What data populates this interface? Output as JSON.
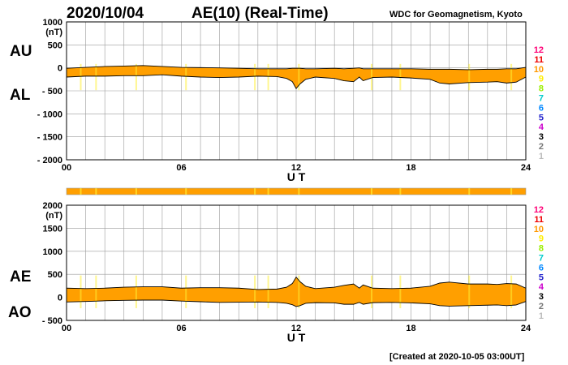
{
  "header": {
    "date": "2020/10/04",
    "title": "AE(10) (Real-Time)",
    "source": "WDC for Geomagnetism, Kyoto",
    "footer": "[Created at 2020-10-05 03:00UT]"
  },
  "colors": {
    "fill": "#ff9f00",
    "highlight": "#ffee33",
    "grid": "#9a9a9a",
    "line": "#000000"
  },
  "legend": {
    "entries": [
      {
        "label": "12",
        "color": "#ff0077"
      },
      {
        "label": "11",
        "color": "#ee0000"
      },
      {
        "label": "10",
        "color": "#ff9900"
      },
      {
        "label": "9",
        "color": "#ffee00"
      },
      {
        "label": "8",
        "color": "#99ee00"
      },
      {
        "label": "7",
        "color": "#00cccc"
      },
      {
        "label": "6",
        "color": "#0088ff"
      },
      {
        "label": "5",
        "color": "#2222cc"
      },
      {
        "label": "4",
        "color": "#cc00cc"
      },
      {
        "label": "3",
        "color": "#000000"
      },
      {
        "label": "2",
        "color": "#777777"
      },
      {
        "label": "1",
        "color": "#bbbbbb"
      }
    ]
  },
  "chart_data": [
    {
      "type": "area",
      "upper_series_name": "AU",
      "lower_series_name": "AL",
      "unit": "(nT)",
      "xlabel": "U T",
      "xlim": [
        0,
        24
      ],
      "ylim": [
        -2000,
        1000
      ],
      "x_ticks": [
        {
          "v": 0,
          "label": "00"
        },
        {
          "v": 6,
          "label": "06"
        },
        {
          "v": 12,
          "label": "12"
        },
        {
          "v": 18,
          "label": "18"
        },
        {
          "v": 24,
          "label": "24"
        }
      ],
      "y_ticks": [
        {
          "v": 1000,
          "label": "1000"
        },
        {
          "v": 500,
          "label": "500"
        },
        {
          "v": 0,
          "label": "0"
        },
        {
          "v": -500,
          "label": "- 500"
        },
        {
          "v": -1000,
          "label": "- 1000"
        },
        {
          "v": -1500,
          "label": "- 1500"
        },
        {
          "v": -2000,
          "label": "- 2000"
        }
      ],
      "grid": true,
      "x": [
        0,
        1,
        2,
        3,
        4,
        5,
        6,
        7,
        8,
        9,
        10,
        11,
        11.5,
        11.8,
        12,
        12.2,
        12.5,
        13,
        14,
        14.5,
        15,
        15.3,
        15.5,
        16,
        17,
        18,
        19,
        19.5,
        20,
        21,
        22,
        22.5,
        23,
        23.5,
        24
      ],
      "upper": [
        -10,
        10,
        30,
        40,
        50,
        30,
        10,
        5,
        0,
        -10,
        -20,
        -20,
        -20,
        -10,
        -10,
        -10,
        -20,
        -20,
        -10,
        -20,
        -10,
        0,
        -20,
        -20,
        -20,
        -20,
        -30,
        -30,
        -30,
        -40,
        -30,
        -30,
        -20,
        -20,
        10
      ],
      "lower": [
        -200,
        -180,
        -180,
        -170,
        -170,
        -150,
        -180,
        -200,
        -210,
        -200,
        -180,
        -190,
        -230,
        -300,
        -450,
        -350,
        -250,
        -200,
        -230,
        -280,
        -300,
        -200,
        -280,
        -210,
        -200,
        -220,
        -250,
        -330,
        -350,
        -320,
        -310,
        -300,
        -330,
        -310,
        -200
      ]
    },
    {
      "type": "area",
      "upper_series_name": "AE",
      "lower_series_name": "AO",
      "unit": "(nT)",
      "xlabel": "U T",
      "xlim": [
        0,
        24
      ],
      "ylim": [
        -500,
        2000
      ],
      "x_ticks": [
        {
          "v": 0,
          "label": "00"
        },
        {
          "v": 6,
          "label": "06"
        },
        {
          "v": 12,
          "label": "12"
        },
        {
          "v": 18,
          "label": "18"
        },
        {
          "v": 24,
          "label": "24"
        }
      ],
      "y_ticks": [
        {
          "v": 2000,
          "label": "2000"
        },
        {
          "v": 1500,
          "label": "1500"
        },
        {
          "v": 1000,
          "label": "1000"
        },
        {
          "v": 500,
          "label": "500"
        },
        {
          "v": 0,
          "label": "0"
        },
        {
          "v": -500,
          "label": "- 500"
        }
      ],
      "grid": true,
      "x": [
        0,
        1,
        2,
        3,
        4,
        5,
        6,
        7,
        8,
        9,
        10,
        11,
        11.5,
        11.8,
        12,
        12.2,
        12.5,
        13,
        14,
        14.5,
        15,
        15.3,
        15.5,
        16,
        17,
        18,
        19,
        19.5,
        20,
        21,
        22,
        22.5,
        23,
        23.5,
        24
      ],
      "upper": [
        200,
        190,
        200,
        220,
        230,
        230,
        200,
        210,
        210,
        200,
        170,
        180,
        220,
        300,
        440,
        340,
        240,
        190,
        220,
        260,
        290,
        200,
        270,
        200,
        190,
        200,
        240,
        310,
        330,
        290,
        290,
        280,
        300,
        290,
        200
      ],
      "lower": [
        -100,
        -90,
        -75,
        -65,
        -60,
        -60,
        -80,
        -95,
        -110,
        -105,
        -100,
        -110,
        -130,
        -160,
        -200,
        -180,
        -130,
        -115,
        -120,
        -150,
        -150,
        -110,
        -150,
        -115,
        -110,
        -120,
        -140,
        -180,
        -190,
        -180,
        -170,
        -165,
        -180,
        -165,
        -90
      ]
    }
  ]
}
